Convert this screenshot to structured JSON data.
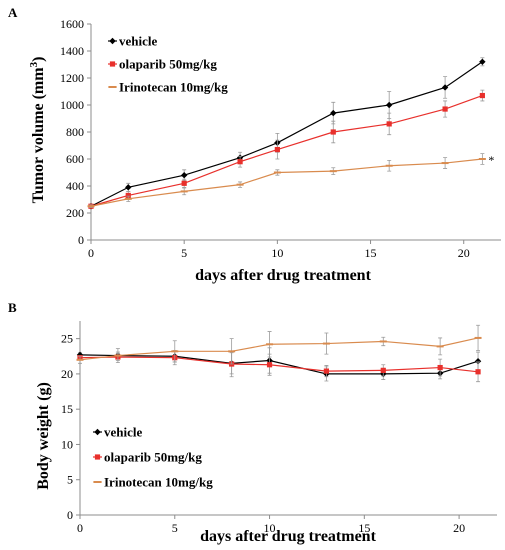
{
  "figure": {
    "panel_a_label": "A",
    "panel_b_label": "B"
  },
  "chart_data": [
    {
      "type": "line",
      "panel": "A",
      "xlabel": "days after drug treatment",
      "ylabel_main": "Tumor volume (mm",
      "ylabel_sup": "3",
      "ylabel_end": ")",
      "xlim": [
        0,
        22
      ],
      "ylim": [
        0,
        1600
      ],
      "xticks": [
        0,
        5,
        10,
        15,
        20
      ],
      "yticks": [
        0,
        200,
        400,
        600,
        800,
        1000,
        1200,
        1400,
        1600
      ],
      "grid": false,
      "legend_position": "top-left",
      "annotation": "*",
      "x": [
        0,
        2,
        5,
        8,
        10,
        13,
        16,
        19,
        21
      ],
      "series": [
        {
          "name": "vehicle",
          "color": "#000000",
          "marker": "diamond",
          "values": [
            250,
            390,
            480,
            610,
            720,
            940,
            1000,
            1130,
            1320
          ],
          "errors": [
            10,
            30,
            40,
            40,
            70,
            80,
            100,
            80,
            30
          ]
        },
        {
          "name": "olaparib 50mg/kg",
          "color": "#e8302c",
          "marker": "square",
          "values": [
            250,
            330,
            420,
            580,
            670,
            800,
            860,
            970,
            1070
          ],
          "errors": [
            10,
            30,
            30,
            40,
            70,
            80,
            80,
            60,
            40
          ]
        },
        {
          "name": "Irinotecan 10mg/kg",
          "color": "#d98b4e",
          "marker": "dash",
          "values": [
            250,
            305,
            360,
            410,
            500,
            510,
            550,
            570,
            600
          ],
          "errors": [
            10,
            20,
            25,
            20,
            20,
            25,
            40,
            40,
            40
          ]
        }
      ]
    },
    {
      "type": "line",
      "panel": "B",
      "xlabel": "days after drug treatment",
      "ylabel": "Body weight (g)",
      "xlim": [
        0,
        22
      ],
      "ylim": [
        0,
        27.5
      ],
      "xticks": [
        0,
        5,
        10,
        15,
        20
      ],
      "yticks": [
        0,
        5,
        10,
        15,
        20,
        25
      ],
      "grid": false,
      "legend_position": "left",
      "x": [
        0,
        2,
        5,
        8,
        10,
        13,
        16,
        19,
        21
      ],
      "series": [
        {
          "name": "vehicle",
          "color": "#000000",
          "marker": "diamond",
          "values": [
            22.7,
            22.6,
            22.5,
            21.5,
            21.9,
            20.0,
            20.0,
            20.1,
            21.8
          ],
          "errors": [
            0.3,
            0.5,
            0.8,
            1.5,
            1.8,
            1.0,
            0.8,
            0.8,
            1.3
          ]
        },
        {
          "name": "olaparib 50mg/kg",
          "color": "#e8302c",
          "marker": "square",
          "values": [
            22.3,
            22.4,
            22.3,
            21.4,
            21.3,
            20.4,
            20.5,
            20.9,
            20.3
          ],
          "errors": [
            0.3,
            0.5,
            1.0,
            1.8,
            1.5,
            0.8,
            0.8,
            1.2,
            1.4
          ]
        },
        {
          "name": "Irinotecan 10mg/kg",
          "color": "#d98b4e",
          "marker": "dash",
          "values": [
            22.0,
            22.6,
            23.2,
            23.2,
            24.2,
            24.3,
            24.6,
            23.9,
            25.1
          ],
          "errors": [
            0.5,
            1.0,
            1.5,
            1.8,
            1.8,
            1.5,
            0.6,
            1.2,
            1.8
          ]
        }
      ]
    }
  ]
}
